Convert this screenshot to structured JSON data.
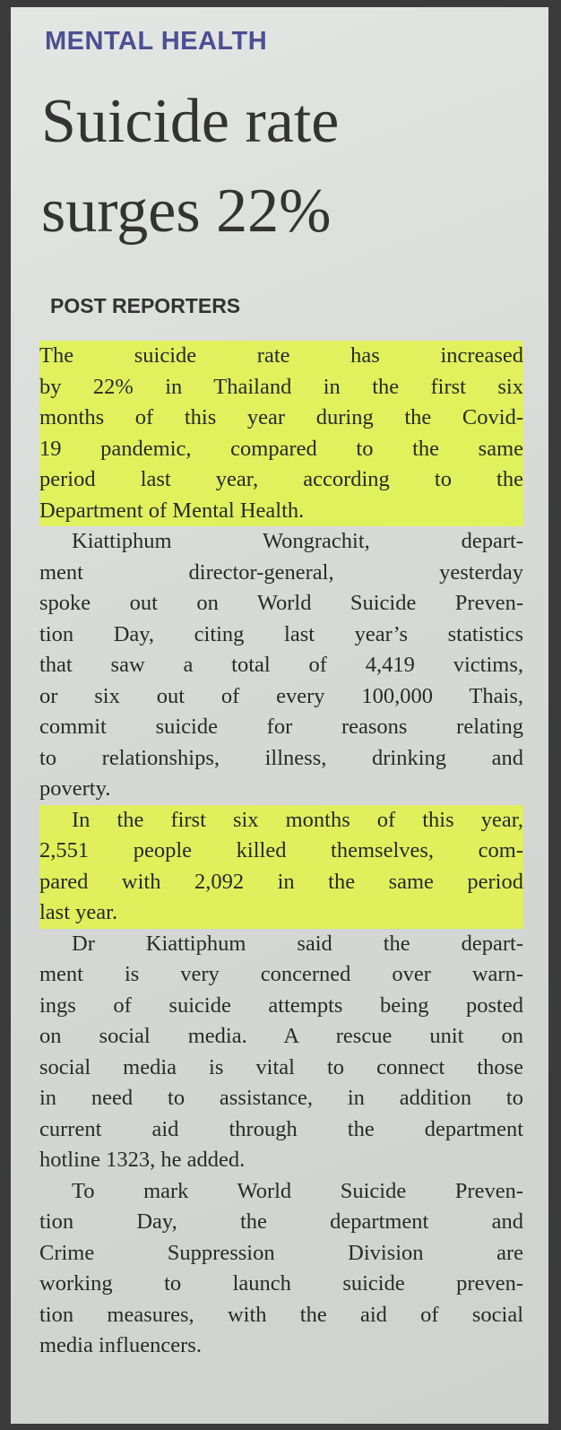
{
  "section": "MENTAL HEALTH",
  "headline": {
    "lines": [
      "Suicide rate",
      "surges 22%"
    ]
  },
  "byline": "POST REPORTERS",
  "article": {
    "paragraphs": [
      {
        "highlight": true,
        "lines": [
          "The suicide rate has increased",
          "by 22% in Thailand in the first six",
          "months of this year during the Covid-",
          "19 pandemic, compared to the same",
          "period last year, according to the",
          "Department of Mental Health."
        ]
      },
      {
        "highlight": false,
        "lines": [
          "Kiattiphum Wongrachit, depart-",
          "ment director-general, yesterday",
          "spoke out on World Suicide Preven-",
          "tion Day, citing last year’s statistics",
          "that saw a total of 4,419 victims,",
          "or six out of every 100,000 Thais,",
          "commit suicide for reasons relating",
          "to relationships, illness, drinking and",
          "poverty."
        ]
      },
      {
        "highlight": true,
        "lines": [
          "In the first six months of this year,",
          "2,551 people killed themselves, com-",
          "pared with 2,092 in the same period",
          "last year."
        ]
      },
      {
        "highlight": false,
        "lines": [
          "Dr Kiattiphum said the depart-",
          "ment is very concerned over warn-",
          "ings of suicide attempts being posted",
          "on social media. A rescue unit on",
          "social media is vital to connect those",
          "in need to assistance, in addition to",
          "current aid through the department",
          "hotline 1323, he added."
        ]
      },
      {
        "highlight": false,
        "lines": [
          "To mark World Suicide Preven-",
          "tion Day, the department and",
          "Crime Suppression Division are",
          "working to launch suicide preven-",
          "tion measures, with the aid of social",
          "media influencers."
        ]
      }
    ]
  }
}
